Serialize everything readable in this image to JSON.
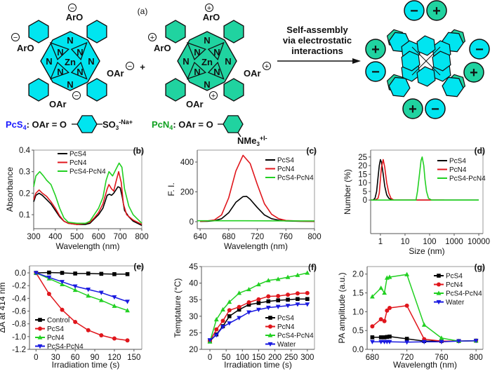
{
  "scheme": {
    "panel_label": "(a)",
    "plus": "+",
    "arrow_text": [
      "Self-assembly",
      "via electrostatic",
      "interactions"
    ],
    "pcs4": {
      "name": "PcS4",
      "name_main": "PcS",
      "name_sub": "4",
      "definition": ": OAr = O",
      "substituent": "SO",
      "sub_3": "3",
      "counter": "-Na+",
      "color": "#1a1aff",
      "fill": "#00e5f0"
    },
    "pcn4": {
      "name": "PcN4",
      "name_main": "PcN",
      "name_sub": "4",
      "definition": ": OAr = O",
      "substituent": "NMe",
      "sub_3": "3",
      "counter": "+I-",
      "color": "#10a020",
      "fill": "#20d3a0"
    },
    "atoms": {
      "N": "N",
      "Zn": "Zn",
      "ArO": "ArO",
      "OAr": "OAr"
    },
    "charges": {
      "minus": "−",
      "plus": "+"
    }
  },
  "chart_data": [
    {
      "id": "b",
      "type": "line",
      "panel_label": "(b)",
      "xlabel": "Wavelength (nm)",
      "ylabel": "Absorbance",
      "xlim": [
        300,
        800
      ],
      "ylim": [
        0.035,
        0.4
      ],
      "xscale": "linear",
      "xticks": [
        300,
        400,
        500,
        600,
        700,
        800
      ],
      "xtick_labels": [
        "300",
        "400",
        "500",
        "600",
        "700",
        "800"
      ],
      "yticks": [
        0.1,
        0.2,
        0.3,
        0.4
      ],
      "ytick_labels": [
        "0.1",
        "0.2",
        "0.3",
        "0.4"
      ],
      "legend": "top-left",
      "markers": false,
      "series": [
        {
          "name": "PcS4",
          "color": "#000000",
          "x": [
            300,
            310,
            325,
            340,
            360,
            380,
            400,
            420,
            440,
            460,
            500,
            540,
            560,
            580,
            600,
            620,
            640,
            650,
            660,
            670,
            690,
            700,
            710,
            720,
            740,
            760,
            780,
            800
          ],
          "y": [
            0.16,
            0.19,
            0.2,
            0.19,
            0.17,
            0.15,
            0.12,
            0.09,
            0.07,
            0.06,
            0.055,
            0.055,
            0.06,
            0.08,
            0.1,
            0.13,
            0.19,
            0.195,
            0.19,
            0.2,
            0.23,
            0.225,
            0.18,
            0.12,
            0.09,
            0.07,
            0.06,
            0.05
          ]
        },
        {
          "name": "PcN4",
          "color": "#e0161c",
          "x": [
            300,
            310,
            325,
            340,
            360,
            380,
            400,
            420,
            440,
            460,
            500,
            540,
            560,
            580,
            600,
            620,
            640,
            648,
            660,
            670,
            680,
            693,
            705,
            715,
            730,
            760,
            800
          ],
          "y": [
            0.17,
            0.2,
            0.215,
            0.2,
            0.185,
            0.16,
            0.13,
            0.095,
            0.07,
            0.06,
            0.055,
            0.06,
            0.065,
            0.085,
            0.11,
            0.15,
            0.22,
            0.24,
            0.22,
            0.21,
            0.25,
            0.3,
            0.25,
            0.15,
            0.1,
            0.075,
            0.055
          ]
        },
        {
          "name": "PcS4-PcN4",
          "color": "#22d022",
          "x": [
            300,
            310,
            328,
            345,
            360,
            380,
            400,
            420,
            440,
            460,
            500,
            540,
            560,
            580,
            600,
            620,
            635,
            648,
            665,
            680,
            695,
            708,
            720,
            740,
            760,
            780,
            800
          ],
          "y": [
            0.23,
            0.28,
            0.3,
            0.28,
            0.26,
            0.24,
            0.19,
            0.13,
            0.085,
            0.065,
            0.06,
            0.06,
            0.07,
            0.1,
            0.13,
            0.18,
            0.26,
            0.3,
            0.28,
            0.31,
            0.34,
            0.32,
            0.22,
            0.14,
            0.1,
            0.08,
            0.06
          ]
        }
      ]
    },
    {
      "id": "c",
      "type": "line",
      "panel_label": "(c)",
      "xlabel": "Wavelength (nm)",
      "ylabel": "F. I.",
      "xlim": [
        636,
        800
      ],
      "ylim": [
        -47,
        480
      ],
      "xscale": "linear",
      "xticks": [
        640,
        680,
        720,
        760,
        800
      ],
      "xtick_labels": [
        "640",
        "680",
        "720",
        "760",
        "800"
      ],
      "yticks": [
        0,
        200,
        400
      ],
      "ytick_labels": [
        "0",
        "200",
        "400"
      ],
      "legend": "top-right",
      "markers": false,
      "series": [
        {
          "name": "PcS4",
          "color": "#000000",
          "x": [
            640,
            650,
            660,
            670,
            680,
            690,
            700,
            705,
            710,
            720,
            730,
            740,
            750,
            760,
            780,
            800
          ],
          "y": [
            2,
            3,
            6,
            20,
            60,
            130,
            168,
            170,
            150,
            95,
            45,
            20,
            10,
            5,
            3,
            2
          ]
        },
        {
          "name": "PcN4",
          "color": "#e0161c",
          "x": [
            640,
            650,
            660,
            670,
            680,
            690,
            700,
            710,
            720,
            730,
            740,
            750,
            760,
            780,
            800
          ],
          "y": [
            3,
            5,
            12,
            45,
            160,
            340,
            445,
            390,
            250,
            120,
            50,
            20,
            8,
            4,
            3
          ]
        },
        {
          "name": "PcS4-PcN4",
          "color": "#22d022",
          "x": [
            636,
            700,
            800
          ],
          "y": [
            6,
            6,
            5
          ]
        }
      ]
    },
    {
      "id": "d",
      "type": "line",
      "panel_label": "(d)",
      "xlabel": "Size (nm)",
      "ylabel": "Number (%)",
      "xlim": [
        0.4,
        14800
      ],
      "ylim": [
        -19.5,
        29
      ],
      "xscale": "log",
      "xticks": [
        1,
        10,
        100,
        1000,
        10000
      ],
      "xtick_labels": [
        "1",
        "10",
        "100",
        "1000",
        "10000"
      ],
      "yticks": [
        0,
        5,
        10,
        15,
        20,
        25
      ],
      "ytick_labels": [
        "0",
        "5",
        "10",
        "15",
        "20",
        "25"
      ],
      "legend": "top-right",
      "markers": false,
      "series": [
        {
          "name": "PcS4",
          "color": "#000000",
          "x": [
            0.4,
            0.5,
            0.6,
            0.7,
            0.8,
            0.9,
            1.0,
            1.1,
            1.3,
            1.5,
            1.8,
            2.2,
            3,
            10000
          ],
          "y": [
            0,
            0,
            1,
            5,
            13,
            20,
            23.5,
            22,
            15,
            8,
            3,
            1,
            0,
            0
          ]
        },
        {
          "name": "PcN4",
          "color": "#e0161c",
          "x": [
            0.4,
            0.6,
            0.8,
            0.9,
            1.0,
            1.1,
            1.3,
            1.5,
            1.8,
            2.2,
            2.7,
            3.5,
            400
          ],
          "y": [
            0,
            0,
            1,
            4,
            12,
            19,
            23.5,
            19,
            10,
            4,
            1,
            0,
            0
          ]
        },
        {
          "name": "PcS4-PcN4",
          "color": "#22d022",
          "x": [
            0.4,
            28,
            32,
            38,
            45,
            50,
            58,
            65,
            75,
            90,
            120,
            10000
          ],
          "y": [
            0,
            0,
            5,
            14,
            23,
            25,
            20,
            12,
            5,
            1,
            0,
            0
          ]
        }
      ]
    },
    {
      "id": "e",
      "type": "line",
      "panel_label": "(e)",
      "xlabel": "Irradiation time (s)",
      "ylabel": "ΔA at 414 nm",
      "xlim": [
        -10,
        162
      ],
      "ylim": [
        -1.2,
        0.11
      ],
      "xscale": "linear",
      "xticks": [
        0,
        30,
        60,
        90,
        120,
        150
      ],
      "xtick_labels": [
        "0",
        "30",
        "60",
        "90",
        "120",
        "150"
      ],
      "yticks": [
        0,
        -0.2,
        -0.4,
        -0.6,
        -0.8,
        -1.0,
        -1.2
      ],
      "ytick_labels": [
        "0.0",
        "-0.2",
        "-0.4",
        "-0.6",
        "-0.8",
        "-1.0",
        "-1.2"
      ],
      "legend": "bottom-left",
      "markers": true,
      "series": [
        {
          "name": "Control",
          "color": "#000000",
          "marker": "square",
          "x": [
            0,
            20,
            40,
            60,
            80,
            100,
            120,
            140
          ],
          "y": [
            0,
            0.005,
            0,
            -0.01,
            -0.01,
            -0.015,
            -0.02,
            -0.02
          ]
        },
        {
          "name": "PcS4",
          "color": "#e0161c",
          "marker": "circle",
          "x": [
            0,
            20,
            40,
            60,
            80,
            100,
            120,
            140
          ],
          "y": [
            0,
            -0.33,
            -0.58,
            -0.77,
            -0.9,
            -0.98,
            -1.03,
            -1.06
          ]
        },
        {
          "name": "PcN4",
          "color": "#22d022",
          "marker": "triangle-up",
          "x": [
            0,
            20,
            40,
            60,
            80,
            100,
            120,
            140
          ],
          "y": [
            0,
            -0.09,
            -0.18,
            -0.27,
            -0.36,
            -0.43,
            -0.52,
            -0.59
          ]
        },
        {
          "name": "PcS4-PcN4",
          "color": "#1a1ae0",
          "marker": "triangle-down",
          "x": [
            0,
            20,
            40,
            60,
            80,
            100,
            120,
            140
          ],
          "y": [
            0,
            -0.07,
            -0.14,
            -0.21,
            -0.26,
            -0.31,
            -0.38,
            -0.45
          ]
        }
      ]
    },
    {
      "id": "f",
      "type": "line",
      "panel_label": "(f)",
      "xlabel": "Irradiation time (s)",
      "ylabel": "Temptature (°C)",
      "xlim": [
        -26,
        322
      ],
      "ylim": [
        20,
        45
      ],
      "xscale": "linear",
      "xticks": [
        0,
        50,
        100,
        150,
        200,
        250,
        300
      ],
      "xtick_labels": [
        "0",
        "50",
        "100",
        "150",
        "200",
        "250",
        "300"
      ],
      "yticks": [
        20,
        25,
        30,
        35,
        40,
        45
      ],
      "ytick_labels": [
        "20",
        "25",
        "30",
        "35",
        "40",
        "45"
      ],
      "legend": "bottom-right",
      "markers": true,
      "series": [
        {
          "name": "PcS4",
          "color": "#000000",
          "marker": "square",
          "x": [
            0,
            20,
            40,
            60,
            90,
            120,
            150,
            180,
            210,
            240,
            270,
            300
          ],
          "y": [
            22.5,
            24.5,
            27,
            30,
            32,
            33.5,
            34,
            34.5,
            34.8,
            35,
            35.2,
            35.2
          ]
        },
        {
          "name": "PcN4",
          "color": "#e0161c",
          "marker": "circle",
          "x": [
            0,
            20,
            40,
            60,
            90,
            120,
            150,
            180,
            210,
            240,
            270,
            300
          ],
          "y": [
            22.5,
            26,
            28.6,
            31.8,
            32.8,
            34.2,
            35.1,
            36,
            36.1,
            36.5,
            36.9,
            37
          ]
        },
        {
          "name": "PcS4-PcN4",
          "color": "#22d022",
          "marker": "triangle-up",
          "x": [
            0,
            20,
            40,
            60,
            90,
            120,
            150,
            180,
            210,
            240,
            270,
            300
          ],
          "y": [
            22.3,
            29,
            32,
            34.3,
            37,
            38.1,
            39.6,
            40.8,
            41.2,
            41.8,
            42.4,
            43.1
          ]
        },
        {
          "name": "Water",
          "color": "#1a1ae0",
          "marker": "triangle-down",
          "x": [
            0,
            20,
            40,
            60,
            90,
            120,
            150,
            180,
            210,
            240,
            270,
            300
          ],
          "y": [
            22.8,
            24.3,
            26.8,
            27.9,
            29.5,
            31.2,
            32,
            32.6,
            32.9,
            33.2,
            33.6,
            33.6
          ]
        }
      ]
    },
    {
      "id": "g",
      "type": "line",
      "panel_label": "(g)",
      "xlabel": "Wavelength (nm)",
      "ylabel": "PA amplitude (a.u.)",
      "xlim": [
        674,
        808
      ],
      "ylim": [
        0,
        2.2
      ],
      "xscale": "linear",
      "xticks": [
        680,
        720,
        760,
        800
      ],
      "xtick_labels": [
        "680",
        "720",
        "760",
        "800"
      ],
      "yticks": [
        0,
        0.5,
        1.0,
        1.5,
        2.0
      ],
      "ytick_labels": [
        "0.0",
        "0.5",
        "1.0",
        "1.5",
        "2.0"
      ],
      "legend": "top-right",
      "markers": true,
      "series": [
        {
          "name": "PcS4",
          "color": "#000000",
          "marker": "square",
          "x": [
            680,
            690,
            694,
            697,
            700,
            720,
            740,
            760,
            780,
            800
          ],
          "y": [
            0.32,
            0.32,
            0.32,
            0.33,
            0.34,
            0.28,
            0.22,
            0.22,
            0.22,
            0.23
          ]
        },
        {
          "name": "PcN4",
          "color": "#e0161c",
          "marker": "circle",
          "x": [
            680,
            690,
            694,
            697,
            700,
            720,
            740,
            760,
            780,
            800
          ],
          "y": [
            0.61,
            0.8,
            0.75,
            1.03,
            1.1,
            1.16,
            0.27,
            0.22,
            0.22,
            0.23
          ]
        },
        {
          "name": "PcS4-PcN4",
          "color": "#22d022",
          "marker": "triangle-up",
          "x": [
            680,
            690,
            694,
            697,
            700,
            720,
            740,
            760,
            780,
            800
          ],
          "y": [
            1.4,
            1.63,
            1.5,
            1.9,
            1.92,
            1.99,
            0.65,
            0.3,
            0.22,
            0.23
          ]
        },
        {
          "name": "Water",
          "color": "#1a1ae0",
          "marker": "triangle-down",
          "x": [
            680,
            690,
            694,
            697,
            700,
            720,
            740,
            760,
            780,
            800
          ],
          "y": [
            0.2,
            0.2,
            0.2,
            0.2,
            0.2,
            0.19,
            0.2,
            0.2,
            0.22,
            0.23
          ]
        }
      ]
    }
  ]
}
